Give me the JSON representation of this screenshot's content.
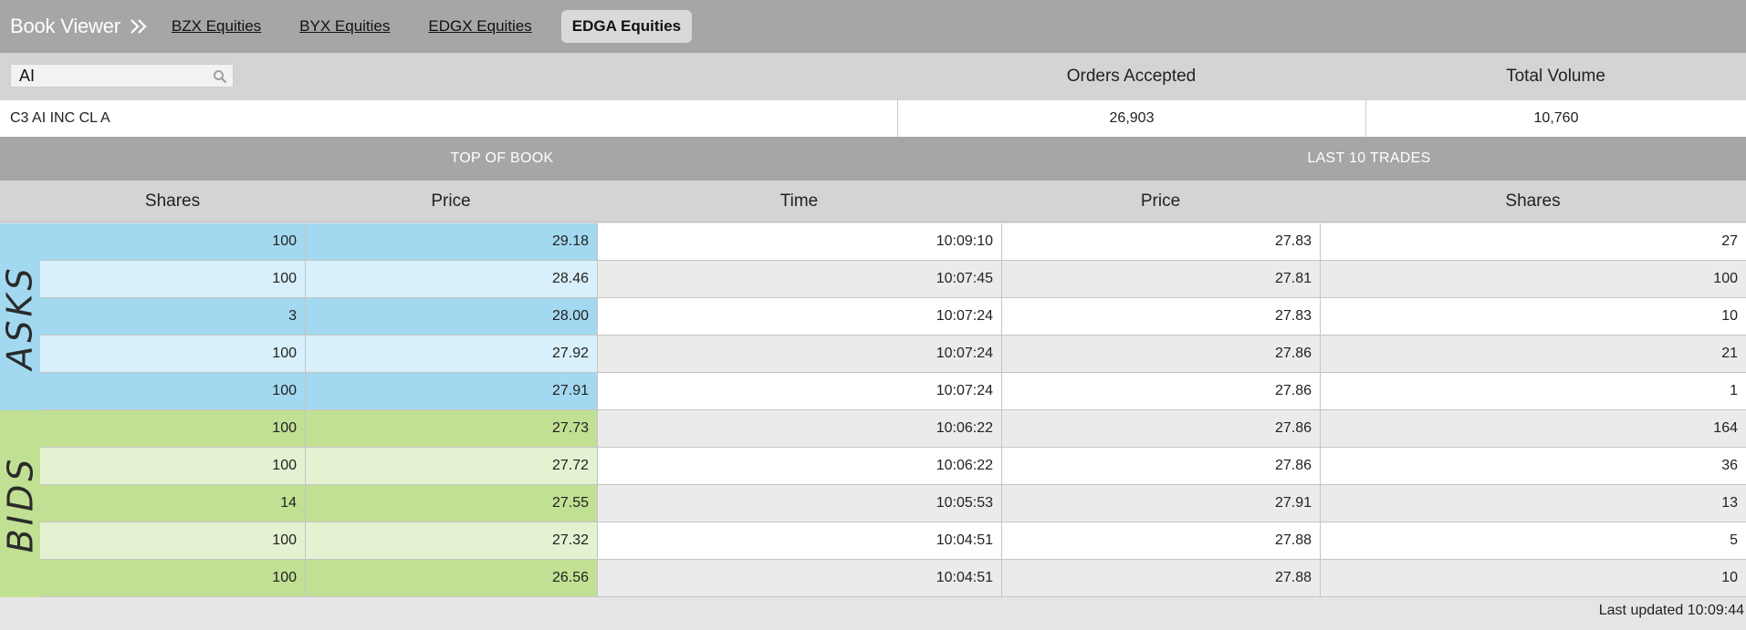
{
  "header": {
    "title": "Book Viewer",
    "tabs": [
      {
        "label": "BZX Equities",
        "active": false
      },
      {
        "label": "BYX Equities",
        "active": false
      },
      {
        "label": "EDGX Equities",
        "active": false
      },
      {
        "label": "EDGA Equities",
        "active": true
      }
    ]
  },
  "search": {
    "value": "AI",
    "icon": "search-icon"
  },
  "stats": {
    "orders_accepted_label": "Orders Accepted",
    "total_volume_label": "Total Volume",
    "symbol_name": "C3 AI INC CL A",
    "orders_accepted": "26,903",
    "total_volume": "10,760"
  },
  "sections": {
    "top_of_book": "TOP OF BOOK",
    "last_trades": "LAST 10 TRADES"
  },
  "columns": {
    "shares": "Shares",
    "price": "Price",
    "time": "Time",
    "trade_price": "Price",
    "trade_shares": "Shares"
  },
  "side_labels": {
    "asks": "ASKS",
    "bids": "BIDS"
  },
  "asks": [
    {
      "shares": "100",
      "price": "29.18"
    },
    {
      "shares": "100",
      "price": "28.46"
    },
    {
      "shares": "3",
      "price": "28.00"
    },
    {
      "shares": "100",
      "price": "27.92"
    },
    {
      "shares": "100",
      "price": "27.91"
    }
  ],
  "bids": [
    {
      "shares": "100",
      "price": "27.73"
    },
    {
      "shares": "100",
      "price": "27.72"
    },
    {
      "shares": "14",
      "price": "27.55"
    },
    {
      "shares": "100",
      "price": "27.32"
    },
    {
      "shares": "100",
      "price": "26.56"
    }
  ],
  "trades": [
    {
      "time": "10:09:10",
      "price": "27.83",
      "shares": "27"
    },
    {
      "time": "10:07:45",
      "price": "27.81",
      "shares": "100"
    },
    {
      "time": "10:07:24",
      "price": "27.83",
      "shares": "10"
    },
    {
      "time": "10:07:24",
      "price": "27.86",
      "shares": "21"
    },
    {
      "time": "10:07:24",
      "price": "27.86",
      "shares": "1"
    },
    {
      "time": "10:06:22",
      "price": "27.86",
      "shares": "164"
    },
    {
      "time": "10:06:22",
      "price": "27.86",
      "shares": "36"
    },
    {
      "time": "10:05:53",
      "price": "27.91",
      "shares": "13"
    },
    {
      "time": "10:04:51",
      "price": "27.88",
      "shares": "5"
    },
    {
      "time": "10:04:51",
      "price": "27.88",
      "shares": "10"
    }
  ],
  "colors": {
    "ask_dark": "#a3d9f0",
    "ask_light": "#d8f0fb",
    "bid_dark": "#c2e093",
    "bid_light": "#e3f2d0",
    "trade_white": "#ffffff",
    "trade_gray": "#ebebeb"
  },
  "footer": {
    "last_updated": "Last updated 10:09:44"
  }
}
